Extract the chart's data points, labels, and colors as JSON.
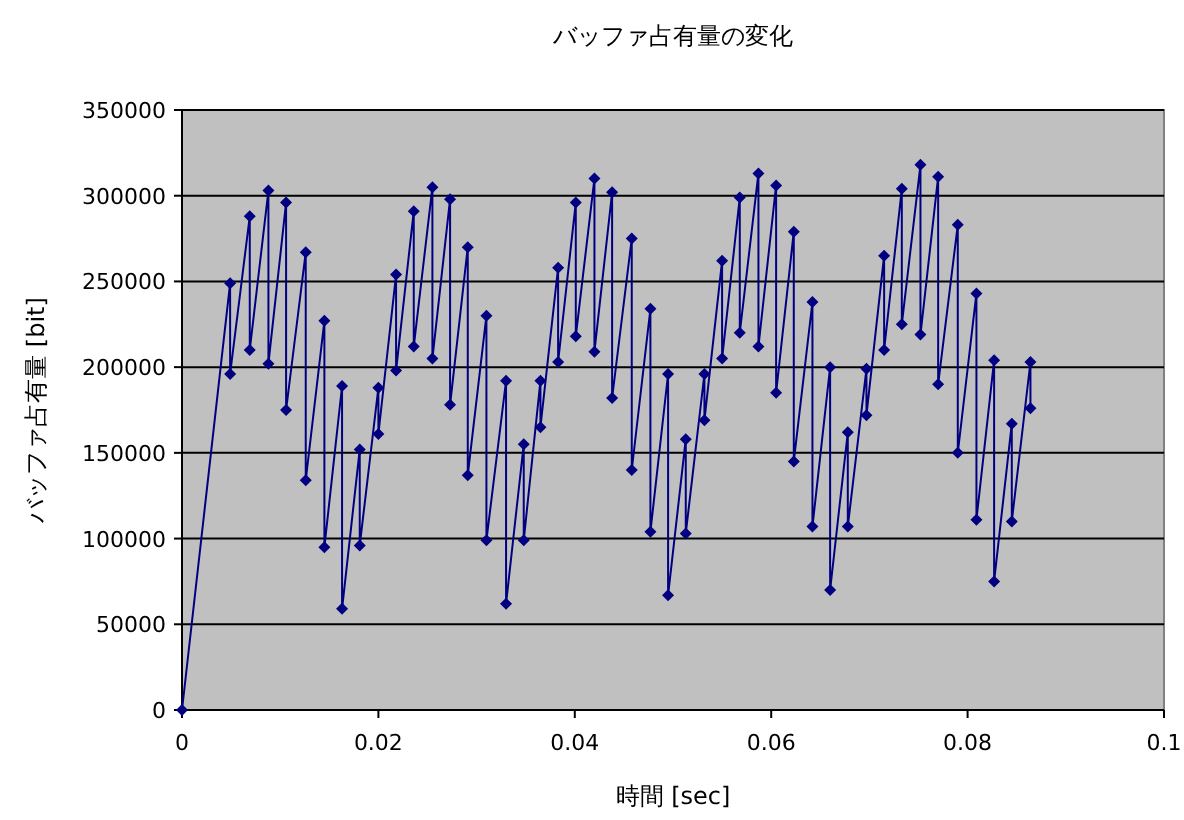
{
  "chart_data": {
    "type": "line",
    "title": "バッファ占有量の変化",
    "xlabel": "時間 [sec]",
    "ylabel": "バッファ占有量 [bit]",
    "xlim": [
      0,
      0.1
    ],
    "xticks": [
      0,
      0.02,
      0.04,
      0.06,
      0.08,
      0.1
    ],
    "ylim": [
      0,
      350000
    ],
    "yticks": [
      0,
      50000,
      100000,
      150000,
      200000,
      250000,
      300000,
      350000
    ],
    "grid": "y",
    "marker": "diamond",
    "line_style": "solid",
    "series": [
      {
        "color": "#000080",
        "x": [
          0,
          0.0049,
          0.0049,
          0.0069,
          0.0069,
          0.0088,
          0.0088,
          0.0106,
          0.0106,
          0.0126,
          0.0126,
          0.0145,
          0.0145,
          0.0163,
          0.0163,
          0.0181,
          0.0181,
          0.02,
          0.02,
          0.0218,
          0.0218,
          0.0236,
          0.0236,
          0.0255,
          0.0255,
          0.0273,
          0.0273,
          0.0291,
          0.0291,
          0.031,
          0.031,
          0.033,
          0.033,
          0.0348,
          0.0348,
          0.0365,
          0.0365,
          0.0383,
          0.0383,
          0.0401,
          0.0401,
          0.042,
          0.042,
          0.0438,
          0.0438,
          0.0458,
          0.0458,
          0.0477,
          0.0477,
          0.0495,
          0.0495,
          0.0513,
          0.0513,
          0.0532,
          0.0532,
          0.055,
          0.055,
          0.0568,
          0.0568,
          0.0587,
          0.0587,
          0.0605,
          0.0605,
          0.0623,
          0.0623,
          0.0642,
          0.0642,
          0.066,
          0.066,
          0.0678,
          0.0678,
          0.0697,
          0.0697,
          0.0715,
          0.0715,
          0.0733,
          0.0733,
          0.0752,
          0.0752,
          0.077,
          0.077,
          0.079,
          0.079,
          0.0809,
          0.0809,
          0.0827,
          0.0827,
          0.0845,
          0.0845,
          0.0864,
          0.0864
        ],
        "values": [
          0,
          249000,
          196000,
          288000,
          210000,
          303000,
          202000,
          296000,
          175000,
          267000,
          134000,
          227000,
          95000,
          189000,
          59000,
          152000,
          96000,
          188000,
          161000,
          254000,
          198000,
          291000,
          212000,
          305000,
          205000,
          298000,
          178000,
          270000,
          137000,
          230000,
          99000,
          192000,
          62000,
          155000,
          99000,
          192000,
          165000,
          258000,
          203000,
          296000,
          218000,
          310000,
          209000,
          302000,
          182000,
          275000,
          140000,
          234000,
          104000,
          196000,
          67000,
          158000,
          103000,
          196000,
          169000,
          262000,
          205000,
          299000,
          220000,
          313000,
          212000,
          306000,
          185000,
          279000,
          145000,
          238000,
          107000,
          200000,
          70000,
          162000,
          107000,
          199000,
          172000,
          265000,
          210000,
          304000,
          225000,
          318000,
          219000,
          311000,
          190000,
          283000,
          150000,
          243000,
          111000,
          204000,
          75000,
          167000,
          110000,
          203000,
          176000
        ]
      }
    ]
  }
}
